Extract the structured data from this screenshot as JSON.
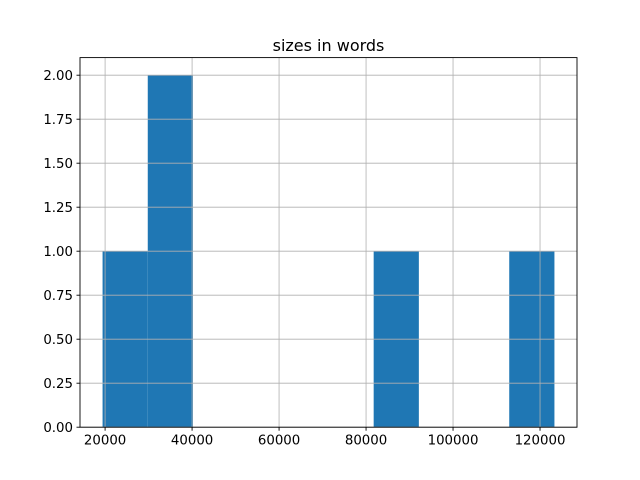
{
  "window": {
    "background": "#ffffff"
  },
  "chart_data": {
    "type": "bar",
    "subtype": "histogram",
    "title": "sizes in words",
    "xlabel": "",
    "ylabel": "",
    "grid": true,
    "legend_position": "none",
    "xlim": [
      14230,
      128500
    ],
    "ylim": [
      0,
      2.1
    ],
    "bin_edges": [
      19420,
      29810,
      40200,
      50590,
      60980,
      71360,
      81750,
      92140,
      102530,
      112920,
      123310
    ],
    "counts": [
      1,
      2,
      0,
      0,
      0,
      0,
      1,
      0,
      0,
      1
    ],
    "x_ticks": [
      {
        "value": 20000,
        "label": "20000"
      },
      {
        "value": 40000,
        "label": "40000"
      },
      {
        "value": 60000,
        "label": "60000"
      },
      {
        "value": 80000,
        "label": "80000"
      },
      {
        "value": 100000,
        "label": "100000"
      },
      {
        "value": 120000,
        "label": "120000"
      }
    ],
    "y_ticks": [
      {
        "value": 0.0,
        "label": "0.00"
      },
      {
        "value": 0.25,
        "label": "0.25"
      },
      {
        "value": 0.5,
        "label": "0.50"
      },
      {
        "value": 0.75,
        "label": "0.75"
      },
      {
        "value": 1.0,
        "label": "1.00"
      },
      {
        "value": 1.25,
        "label": "1.25"
      },
      {
        "value": 1.5,
        "label": "1.50"
      },
      {
        "value": 1.75,
        "label": "1.75"
      },
      {
        "value": 2.0,
        "label": "2.00"
      }
    ],
    "colors": {
      "bar": "#1f77b4",
      "grid": "#b0b0b0",
      "spine": "#000000",
      "text": "#000000",
      "background": "#ffffff"
    }
  }
}
